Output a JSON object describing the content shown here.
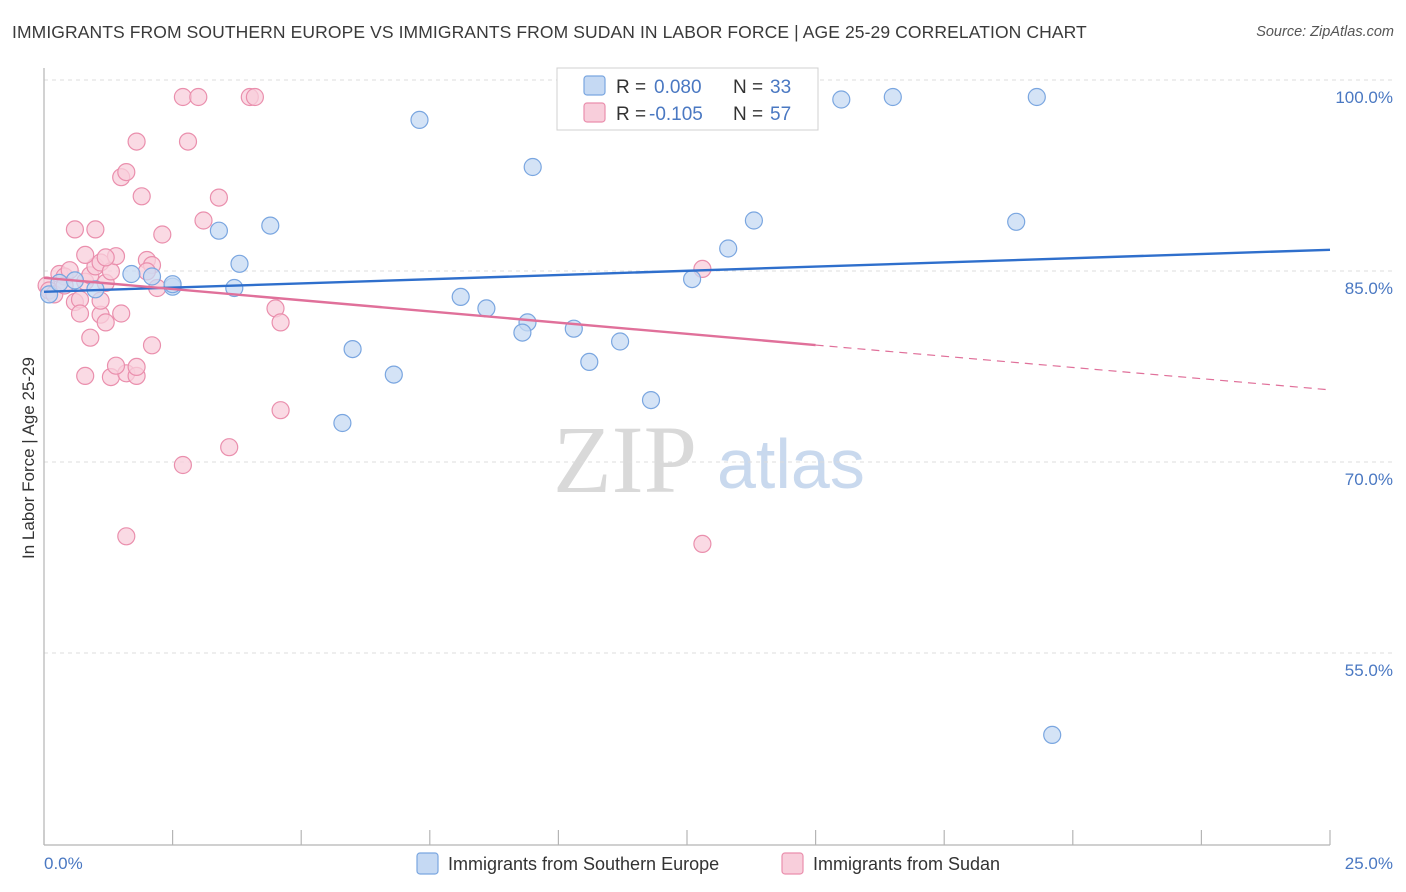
{
  "title": "IMMIGRANTS FROM SOUTHERN EUROPE VS IMMIGRANTS FROM SUDAN IN LABOR FORCE | AGE 25-29 CORRELATION CHART",
  "source": "Source: ZipAtlas.com",
  "watermark": {
    "zip": "ZIP",
    "atlas": "atlas"
  },
  "colors": {
    "blue": "#7aa6e0",
    "blue_fill": "#c5d9f3",
    "blue_line": "#2f6fcc",
    "pink": "#ea8fad",
    "pink_fill": "#f8cedb",
    "pink_line": "#e0709a",
    "axis_label": "#4a78c2",
    "grid": "#dcdcdc"
  },
  "legend": {
    "rows": [
      {
        "r_label": "R =",
        "r_value": "0.080",
        "n_label": "N =",
        "n_value": "33"
      },
      {
        "r_label": "R =",
        "r_value": "-0.105",
        "n_label": "N =",
        "n_value": "57"
      }
    ]
  },
  "chart_data": {
    "type": "scatter",
    "title": "IMMIGRANTS FROM SOUTHERN EUROPE VS IMMIGRANTS FROM SUDAN IN LABOR FORCE | AGE 25-29 CORRELATION CHART",
    "xlabel": "",
    "ylabel": "In Labor Force | Age 25-29",
    "xlim": [
      0,
      25
    ],
    "ylim": [
      40,
      101.5
    ],
    "x_tick_labels": [
      "0.0%",
      "25.0%"
    ],
    "y_ticks": [
      {
        "value": 100,
        "label": "100.0%"
      },
      {
        "value": 85,
        "label": "85.0%"
      },
      {
        "value": 70,
        "label": "70.0%"
      },
      {
        "value": 55,
        "label": "55.0%"
      }
    ],
    "series": [
      {
        "name": "Immigrants from Southern Europe",
        "color": "blue",
        "trend": {
          "x0": 0,
          "y0": 84.7,
          "x1": 25,
          "y1": 88.0,
          "dash_from": null
        },
        "points": [
          [
            0.1,
            84.5
          ],
          [
            0.3,
            85.4
          ],
          [
            1.7,
            86.1
          ],
          [
            2.1,
            85.9
          ],
          [
            2.5,
            85.1
          ],
          [
            3.4,
            89.5
          ],
          [
            3.8,
            86.9
          ],
          [
            4.4,
            89.9
          ],
          [
            6.0,
            80.2
          ],
          [
            7.3,
            98.2
          ],
          [
            8.1,
            84.3
          ],
          [
            8.6,
            83.4
          ],
          [
            9.4,
            82.3
          ],
          [
            9.5,
            94.5
          ],
          [
            10.3,
            81.8
          ],
          [
            10.6,
            79.2
          ],
          [
            11.2,
            80.8
          ],
          [
            11.8,
            76.2
          ],
          [
            12.6,
            85.7
          ],
          [
            13.3,
            88.1
          ],
          [
            13.8,
            90.3
          ],
          [
            15.5,
            99.8
          ],
          [
            16.5,
            100.0
          ],
          [
            19.3,
            100.0
          ],
          [
            19.6,
            49.9
          ],
          [
            2.5,
            85.3
          ],
          [
            3.7,
            85.0
          ],
          [
            0.6,
            85.6
          ],
          [
            1.0,
            84.9
          ],
          [
            5.8,
            74.4
          ],
          [
            6.8,
            78.2
          ],
          [
            9.3,
            81.5
          ],
          [
            18.9,
            90.2
          ]
        ]
      },
      {
        "name": "Immigrants from Sudan",
        "color": "pink",
        "trend": {
          "x0": 0,
          "y0": 85.8,
          "x1": 25,
          "y1": 77.0,
          "dash_from": 15
        },
        "points": [
          [
            0.05,
            85.2
          ],
          [
            0.1,
            84.8
          ],
          [
            0.2,
            84.5
          ],
          [
            0.3,
            86.1
          ],
          [
            0.4,
            85.9
          ],
          [
            0.5,
            86.4
          ],
          [
            0.6,
            83.9
          ],
          [
            0.7,
            84.1
          ],
          [
            0.8,
            85.5
          ],
          [
            0.9,
            86.0
          ],
          [
            1.0,
            86.7
          ],
          [
            1.1,
            87.0
          ],
          [
            1.2,
            85.4
          ],
          [
            1.3,
            86.3
          ],
          [
            1.4,
            87.5
          ],
          [
            0.6,
            89.6
          ],
          [
            0.8,
            87.6
          ],
          [
            1.0,
            89.6
          ],
          [
            1.2,
            87.4
          ],
          [
            1.5,
            93.7
          ],
          [
            1.6,
            94.1
          ],
          [
            1.8,
            96.5
          ],
          [
            1.9,
            92.2
          ],
          [
            2.0,
            87.2
          ],
          [
            2.1,
            86.8
          ],
          [
            2.2,
            85.0
          ],
          [
            2.3,
            89.2
          ],
          [
            2.7,
            100.0
          ],
          [
            3.0,
            100.0
          ],
          [
            2.8,
            96.5
          ],
          [
            3.1,
            90.3
          ],
          [
            3.4,
            92.1
          ],
          [
            4.0,
            100.0
          ],
          [
            4.1,
            100.0
          ],
          [
            4.5,
            83.4
          ],
          [
            4.6,
            82.3
          ],
          [
            4.6,
            75.4
          ],
          [
            3.6,
            72.5
          ],
          [
            2.7,
            71.1
          ],
          [
            1.6,
            65.5
          ],
          [
            0.8,
            78.1
          ],
          [
            1.3,
            78.0
          ],
          [
            1.6,
            78.3
          ],
          [
            1.8,
            78.1
          ],
          [
            1.8,
            78.8
          ],
          [
            1.5,
            83.0
          ],
          [
            2.1,
            80.5
          ],
          [
            1.1,
            82.9
          ],
          [
            1.2,
            82.3
          ],
          [
            1.4,
            78.9
          ],
          [
            0.9,
            81.1
          ],
          [
            0.7,
            83.0
          ],
          [
            1.1,
            84.0
          ],
          [
            12.8,
            86.5
          ],
          [
            12.8,
            64.9
          ],
          [
            0.4,
            85.2
          ],
          [
            2.0,
            86.3
          ]
        ]
      }
    ]
  },
  "bottom_legend": [
    {
      "label": "Immigrants from Southern Europe",
      "color": "blue"
    },
    {
      "label": "Immigrants from Sudan",
      "color": "pink"
    }
  ]
}
